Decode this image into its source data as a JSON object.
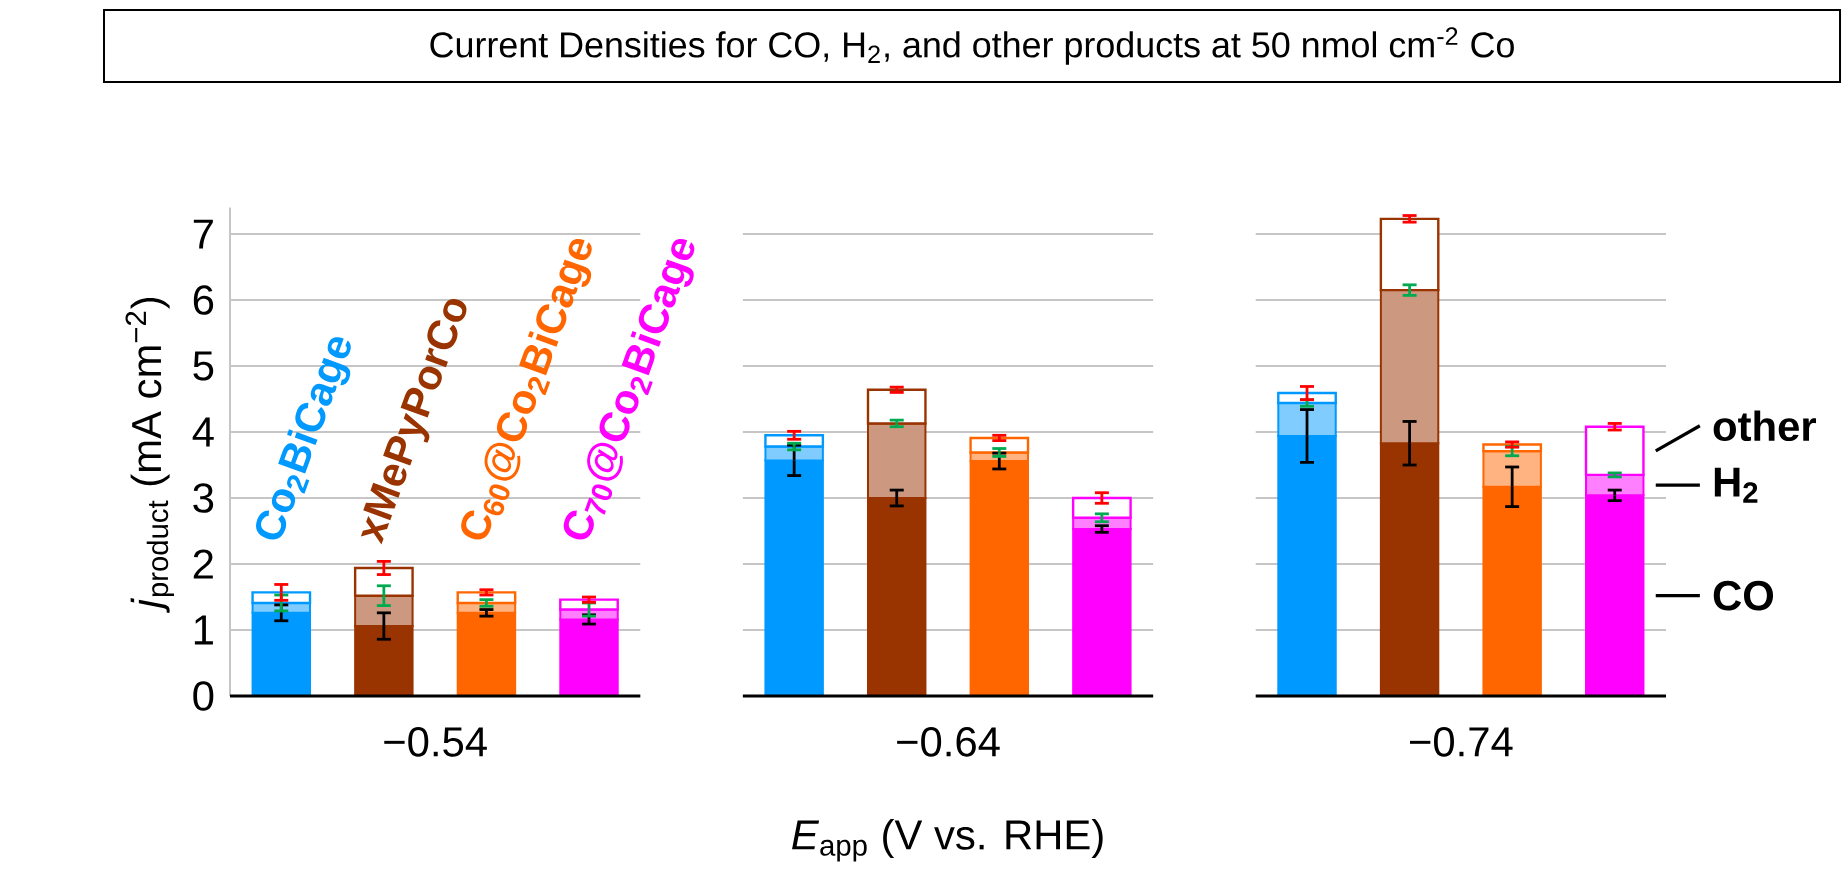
{
  "chart_data": {
    "type": "bar",
    "stacked": true,
    "title": "Current Densities for CO, H$_{2}$, and other products at 50 nmol cm$^{-2}$ Co",
    "ylabel": "*j*$_{product}$ (mA cm$^{−2}$)",
    "xlabel": "*E*$_{app}$ (V vs. RHE)",
    "grid": "y",
    "categories": [
      "Co$_{2}$BiCage",
      "xMePyPorCo",
      "C$_{60}$@Co$_{2}$BiCage",
      "C$_{70}$@Co$_{2}$BiCage",
      null,
      null,
      null,
      null,
      null,
      null,
      null,
      null,
      null,
      null
    ],
    "ylim": [
      0,
      7.4
    ],
    "yticks": [
      0,
      1,
      2,
      3,
      4,
      5,
      6,
      7
    ],
    "annotations": [
      "−0.54",
      "−0.64",
      "−0.74"
    ],
    "series": [
      {
        "name": "CO",
        "colors": [
          "#0099ff",
          "#993300",
          "#ff6600",
          "#ff00ff",
          null,
          "#0099ff",
          "#993300",
          "#ff6600",
          "#ff00ff",
          null,
          "#0099ff",
          "#993300",
          "#ff6600",
          "#ff00ff"
        ],
        "values": [
          1.26,
          1.06,
          1.26,
          1.16,
          null,
          3.57,
          3.0,
          3.56,
          2.53,
          null,
          3.94,
          3.83,
          3.17,
          3.04
        ],
        "errors": [
          0.12,
          0.2,
          0.05,
          0.07,
          null,
          0.23,
          0.12,
          0.12,
          0.05,
          null,
          0.4,
          0.33,
          0.3,
          0.08
        ]
      },
      {
        "name": "H$_{2}$",
        "colors": [
          "#80ccff",
          "#cc9980",
          "#ffb380",
          "#ff80ff",
          null,
          "#80ccff",
          "#cc9980",
          "#ffb380",
          "#ff80ff",
          null,
          "#80ccff",
          "#cc9980",
          "#ffb380",
          "#ff80ff"
        ],
        "values": [
          0.15,
          0.46,
          0.15,
          0.15,
          null,
          0.21,
          1.13,
          0.13,
          0.17,
          null,
          0.5,
          2.32,
          0.54,
          0.31
        ],
        "errors": [
          0.12,
          0.15,
          0.05,
          0.1,
          null,
          0.05,
          0.05,
          0.06,
          0.06,
          null,
          0.05,
          0.08,
          0.07,
          0.03
        ]
      },
      {
        "name": "other",
        "colors": [
          "#ffffff",
          "#ffffff",
          "#ffffff",
          "#ffffff",
          null,
          "#ffffff",
          "#ffffff",
          "#ffffff",
          "#ffffff",
          null,
          "#ffffff",
          "#ffffff",
          "#ffffff",
          "#ffffff"
        ],
        "values": [
          0.16,
          0.42,
          0.16,
          0.15,
          null,
          0.17,
          0.51,
          0.22,
          0.3,
          null,
          0.15,
          1.08,
          0.1,
          0.73
        ],
        "errors": [
          0.12,
          0.1,
          0.04,
          0.04,
          null,
          0.06,
          0.04,
          0.04,
          0.08,
          null,
          0.1,
          0.05,
          0.04,
          0.05
        ]
      }
    ]
  }
}
